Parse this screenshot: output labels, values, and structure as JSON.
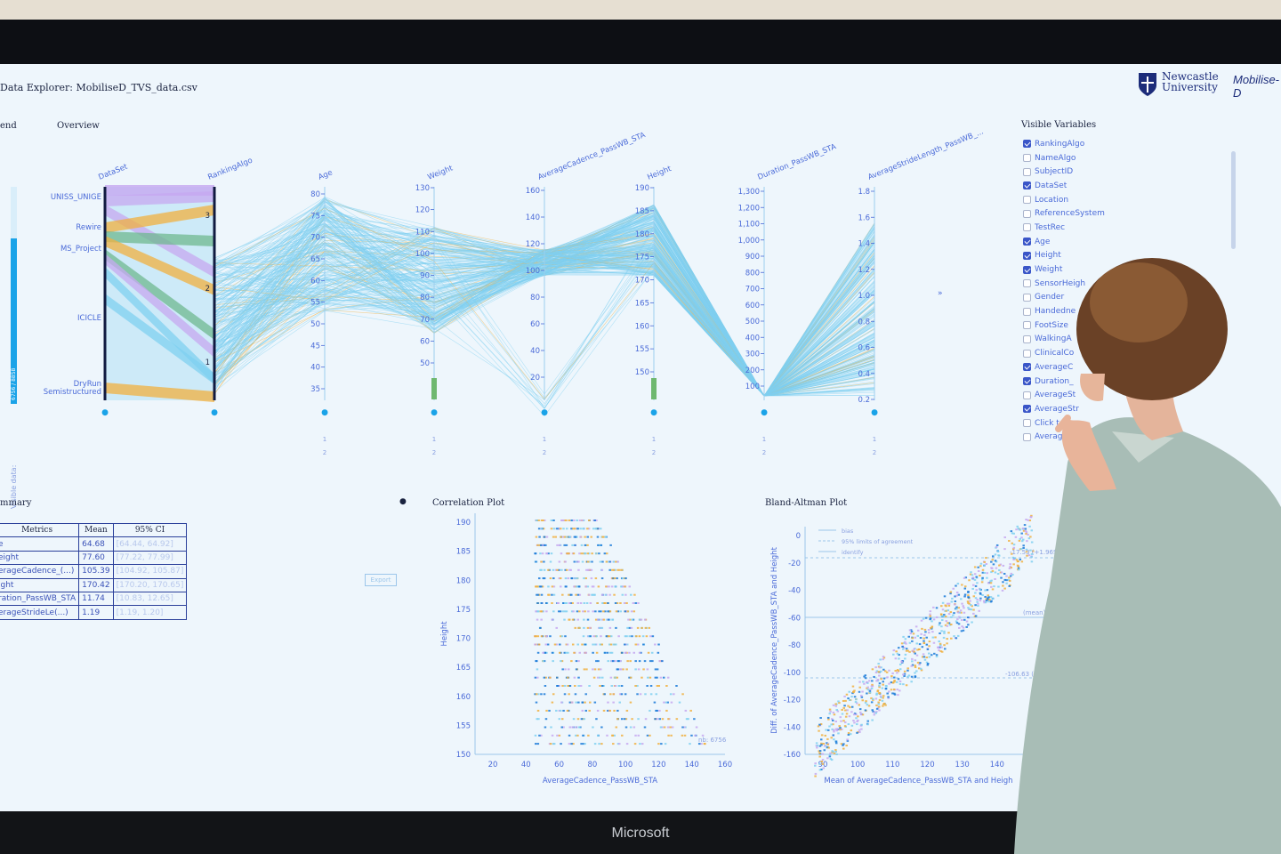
{
  "app": {
    "title": "Data Explorer: MobiliseD_TVS_data.csv",
    "logo_newcastle": "Newcastle University",
    "logo_mobilise": "Mobilise-D",
    "bezel_brand": "Microsoft"
  },
  "legend": {
    "heading": "end",
    "visible_data_label": "Visible data:",
    "visible_count": "6756 / 8858",
    "visible_fraction": 0.763
  },
  "overview": {
    "heading": "Overview",
    "categorical_axes": [
      {
        "name": "DataSet",
        "labels": [
          "UNISS_UNIGE",
          "Rewire",
          "MS_Project",
          "ICICLE",
          "DryRun",
          "Semistructured"
        ]
      },
      {
        "name": "RankingAlgo",
        "labels": [
          "3",
          "2",
          "1"
        ]
      }
    ],
    "numeric_axes": [
      {
        "name": "Age",
        "min": 35,
        "max": 80,
        "step": 5,
        "ticks": [
          "80",
          "75",
          "70",
          "65",
          "60",
          "55",
          "50",
          "45",
          "40",
          "35"
        ]
      },
      {
        "name": "Weight",
        "min": 50,
        "max": 130,
        "step": 10,
        "ticks": [
          "130",
          "120",
          "110",
          "100",
          "90",
          "80",
          "70",
          "60",
          "50"
        ]
      },
      {
        "name": "AverageCadence_PassWB_STA",
        "min": 20,
        "max": 160,
        "step": 20,
        "ticks": [
          "160",
          "140",
          "120",
          "100",
          "80",
          "60",
          "40",
          "20"
        ]
      },
      {
        "name": "Height",
        "min": 150,
        "max": 190,
        "step": 5,
        "ticks": [
          "190",
          "185",
          "180",
          "175",
          "170",
          "165",
          "160",
          "155",
          "150"
        ]
      },
      {
        "name": "Duration_PassWB_STA",
        "min": 100,
        "max": 1300,
        "step": 100,
        "ticks": [
          "1,300",
          "1,200",
          "1,100",
          "1,000",
          "900",
          "800",
          "700",
          "600",
          "500",
          "400",
          "300",
          "200",
          "100"
        ]
      },
      {
        "name": "AverageStrideLength_PassWB_...",
        "min": 0.2,
        "max": 1.8,
        "step": 0.2,
        "ticks": [
          "1.8",
          "1.6",
          "1.4",
          "1.2",
          "1.0",
          "0.8",
          "0.6",
          "0.4",
          "0.2"
        ]
      }
    ],
    "sort_labels": [
      "1",
      "2"
    ],
    "expand_icon": "»"
  },
  "visible_variables": {
    "heading": "Visible Variables",
    "items": [
      {
        "label": "RankingAlgo",
        "checked": true
      },
      {
        "label": "NameAlgo",
        "checked": false
      },
      {
        "label": "SubjectID",
        "checked": false
      },
      {
        "label": "DataSet",
        "checked": true
      },
      {
        "label": "Location",
        "checked": false
      },
      {
        "label": "ReferenceSystem",
        "checked": false
      },
      {
        "label": "TestRec",
        "checked": false
      },
      {
        "label": "Age",
        "checked": true
      },
      {
        "label": "Height",
        "checked": true
      },
      {
        "label": "Weight",
        "checked": true
      },
      {
        "label": "SensorHeigh",
        "checked": false
      },
      {
        "label": "Gender",
        "checked": false
      },
      {
        "label": "Handedne",
        "checked": false
      },
      {
        "label": "FootSize",
        "checked": false
      },
      {
        "label": "WalkingA",
        "checked": false
      },
      {
        "label": "ClinicalCo",
        "checked": false
      },
      {
        "label": "AverageC",
        "checked": true
      },
      {
        "label": "Duration_",
        "checked": true
      },
      {
        "label": "AverageSt",
        "checked": false
      },
      {
        "label": "AverageStr",
        "checked": true
      },
      {
        "label": "Click t",
        "checked": false
      },
      {
        "label": "Average",
        "checked": false
      }
    ]
  },
  "summary": {
    "heading": "mmary",
    "columns": [
      "Metrics",
      "Mean",
      "95% CI"
    ],
    "rows": [
      [
        "e",
        "64.68",
        "[64.44, 64.92]"
      ],
      [
        "eight",
        "77.60",
        "[77.22, 77.99]"
      ],
      [
        "erageCadence_(...)",
        "105.39",
        "[104.92, 105.87]"
      ],
      [
        "ight",
        "170.42",
        "[170.20, 170.65]"
      ],
      [
        "ration_PassWB_STA",
        "11.74",
        "[10.83, 12.65]"
      ],
      [
        "erageStrideLe(...)",
        "1.19",
        "[1.19, 1.20]"
      ]
    ],
    "export_label": "Export"
  },
  "correlation": {
    "heading": "Correlation Plot",
    "xlabel": "AverageCadence_PassWB_STA",
    "ylabel": "Height",
    "xticks": [
      "20",
      "40",
      "60",
      "80",
      "100",
      "120",
      "140",
      "160"
    ],
    "yticks": [
      "190",
      "185",
      "180",
      "175",
      "170",
      "165",
      "160",
      "155",
      "150"
    ],
    "nb": "nb: 6756"
  },
  "bland_altman": {
    "heading": "Bland-Altman Plot",
    "xlabel": "Mean of AverageCadence_PassWB_STA and Heigh",
    "ylabel": "Diff. of AverageCadence_PassWB_STA and Height",
    "xticks": [
      "90",
      "100",
      "110",
      "120",
      "130",
      "140",
      "150"
    ],
    "yticks": [
      "0",
      "-20",
      "-40",
      "-60",
      "-80",
      "-100",
      "-120",
      "-140",
      "-160"
    ],
    "legend": [
      "bias",
      "95% limits of agreement",
      "identify"
    ],
    "upper_label": "-17.53 (+1.96SD)",
    "mean_label": "(mean)",
    "lower_label": "-106.63 (-1.96SD)"
  },
  "colors": {
    "accent": "#1aa3e8",
    "lines": "#7fd0f0",
    "purple": "#c6a8f0",
    "orange": "#f0b040",
    "green": "#6fb890",
    "navy": "#1a2340"
  }
}
